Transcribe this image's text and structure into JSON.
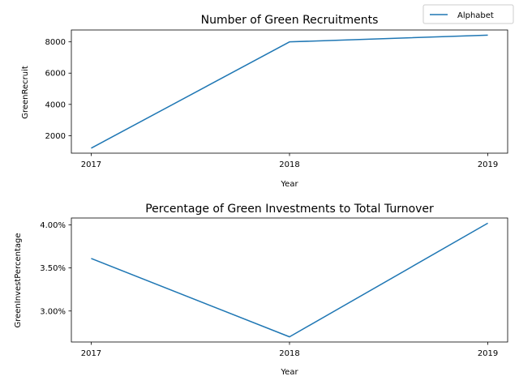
{
  "colors": {
    "series": "#1f77b4",
    "axis": "#000000",
    "legend_border": "#cccccc"
  },
  "legend": {
    "placement": "top-right",
    "entries": [
      "Alphabet"
    ]
  },
  "chart_data": [
    {
      "type": "line",
      "title": "Number of Green Recruitments",
      "xlabel": "Year",
      "ylabel": "GreenRecruit",
      "x": [
        2017,
        2018,
        2019
      ],
      "xticks": [
        "2017",
        "2018",
        "2019"
      ],
      "yticks": [
        "2000",
        "4000",
        "6000",
        "8000"
      ],
      "ytick_values": [
        2000,
        4000,
        6000,
        8000
      ],
      "ylim": [
        880,
        8760
      ],
      "grid": false,
      "series": [
        {
          "name": "Alphabet",
          "values": [
            1200,
            8000,
            8430
          ]
        }
      ]
    },
    {
      "type": "line",
      "title": "Percentage of Green Investments to Total Turnover",
      "xlabel": "Year",
      "ylabel": "GreenInvestPercentage",
      "x": [
        2017,
        2018,
        2019
      ],
      "xticks": [
        "2017",
        "2018",
        "2019"
      ],
      "yticks": [
        "3.00%",
        "3.50%",
        "4.00%"
      ],
      "ytick_values": [
        3.0,
        3.5,
        4.0
      ],
      "ylim": [
        2.64,
        4.08
      ],
      "grid": false,
      "series": [
        {
          "values": [
            3.61,
            2.7,
            4.02
          ]
        }
      ]
    }
  ]
}
